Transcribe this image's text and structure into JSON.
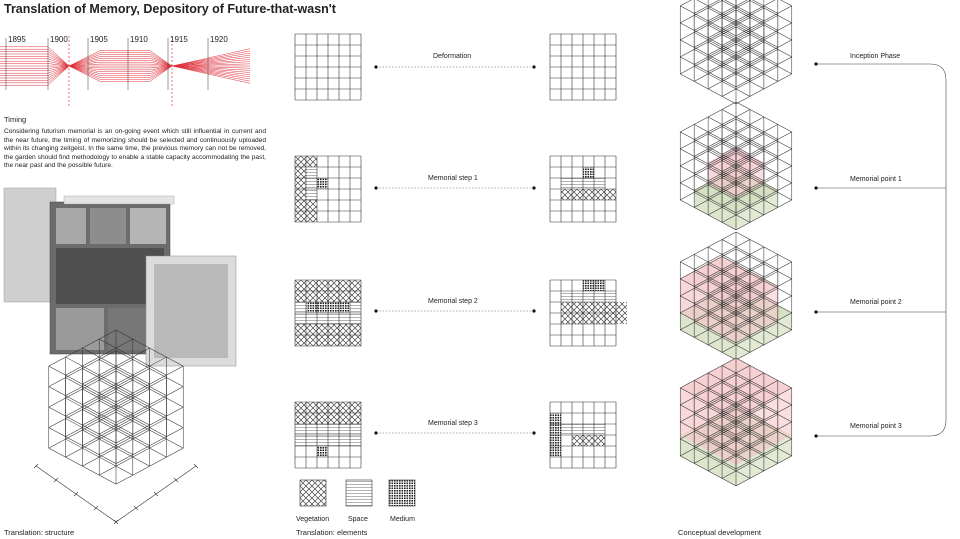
{
  "title": "Translation of Memory, Depository of Future-that-wasn't",
  "timeline": {
    "years": [
      "1895",
      "1900",
      "1905",
      "1910",
      "1915",
      "1920"
    ],
    "accent_color": "#e0303a"
  },
  "timing": {
    "heading": "Timing",
    "text": "Considering futurism memorial is an on-going event which still influential in current and the near future, the timing of memorizing should be selected and continuously uploaded within its changing zeitgeist. In the same time, the previous memory can not be removed, the garden should find methodology to enable a stable capacity accommodating the past, the near past and the possible future."
  },
  "steps": [
    {
      "label": "Deformation"
    },
    {
      "label": "Memorial step 1"
    },
    {
      "label": "Memorial step 2"
    },
    {
      "label": "Memorial step 3"
    }
  ],
  "legend": [
    {
      "label": "Vegetation",
      "pattern": "cross-hatch"
    },
    {
      "label": "Space",
      "pattern": "horizontal-lines"
    },
    {
      "label": "Medium",
      "pattern": "dense-grid"
    }
  ],
  "phases": [
    {
      "label": "Inception Phase"
    },
    {
      "label": "Memorial point 1"
    },
    {
      "label": "Memorial point 2"
    },
    {
      "label": "Memorial point 3"
    }
  ],
  "captions": {
    "structure": "Translation: structure",
    "elements": "Translation: elements",
    "conceptual": "Conceptual development"
  },
  "colors": {
    "memory_pink": "#f6c8cc",
    "vegetation_green": "#cfdcb8",
    "line": "#333333"
  }
}
